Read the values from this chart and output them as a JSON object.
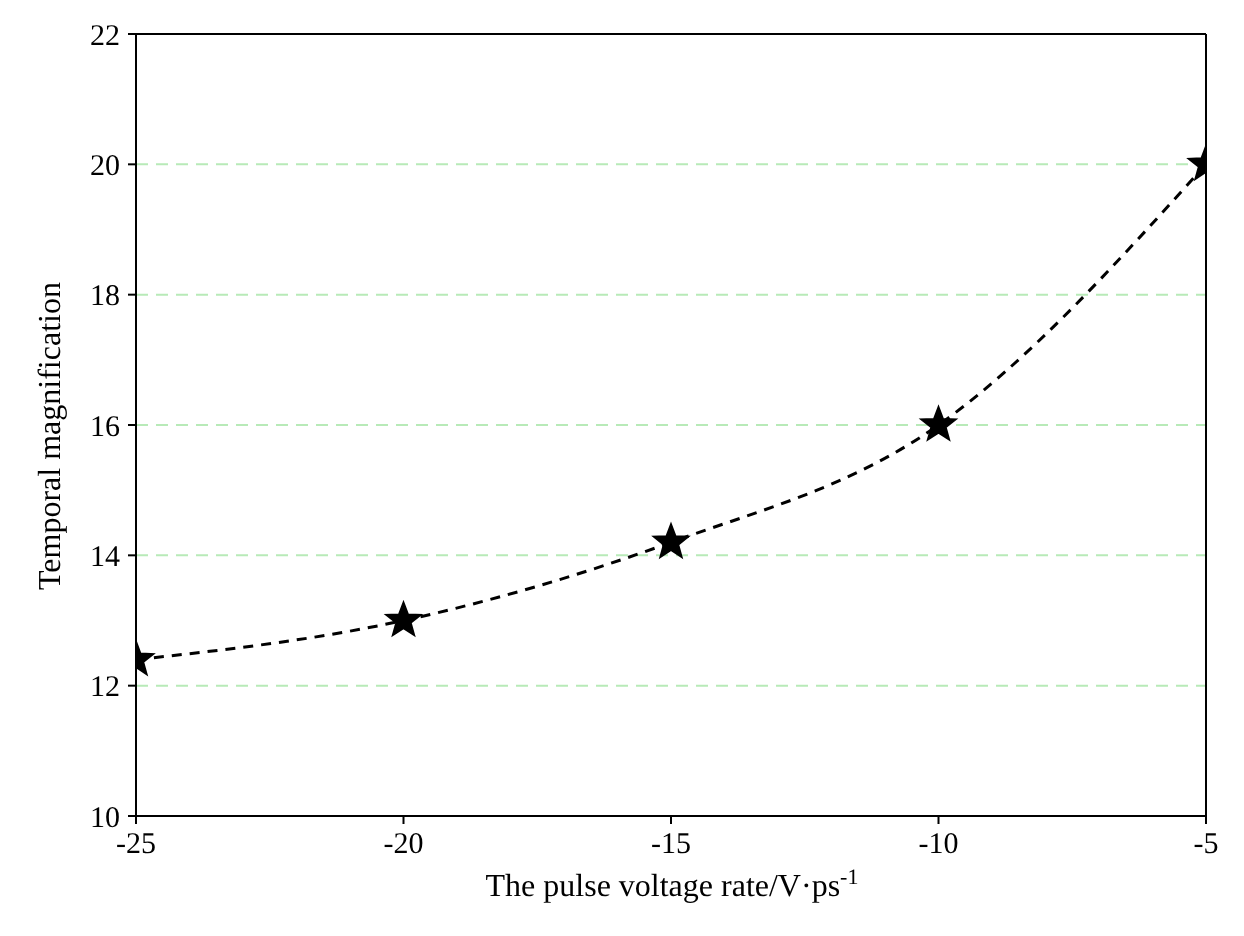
{
  "chart_data": {
    "type": "line",
    "xlabel": "The pulse voltage rate/V·ps$^{-1}$",
    "ylabel": "Temporal magnification",
    "x": [
      -25,
      -20,
      -15,
      -10,
      -5
    ],
    "series": [
      {
        "color": "#000000",
        "values": [
          12.4,
          13.0,
          14.2,
          16.0,
          20.0
        ]
      }
    ],
    "xlim": [
      -25,
      -5
    ],
    "xticks": [
      -25,
      -20,
      -15,
      -10,
      -5
    ],
    "ylim": [
      10,
      22
    ],
    "yticks": [
      10,
      12,
      14,
      16,
      18,
      20,
      22
    ],
    "grid": "y",
    "marker": "star",
    "line_style": "dashed",
    "legend": false
  }
}
